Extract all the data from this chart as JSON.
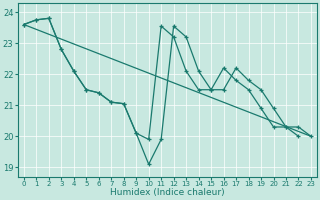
{
  "xlabel": "Humidex (Indice chaleur)",
  "bg_color": "#c8e8e0",
  "grid_color": "#ffffff",
  "line_color": "#1a7a6e",
  "xlim": [
    -0.5,
    23.5
  ],
  "ylim": [
    18.7,
    24.3
  ],
  "yticks": [
    19,
    20,
    21,
    22,
    23,
    24
  ],
  "xticks": [
    0,
    1,
    2,
    3,
    4,
    5,
    6,
    7,
    8,
    9,
    10,
    11,
    12,
    13,
    14,
    15,
    16,
    17,
    18,
    19,
    20,
    21,
    22,
    23
  ],
  "line1_x": [
    0,
    1,
    2,
    3,
    4,
    5,
    6,
    7,
    8,
    9,
    10,
    11,
    12,
    13,
    14,
    15,
    16,
    17,
    18,
    19,
    20,
    21,
    22,
    23
  ],
  "line1_y": [
    23.6,
    23.75,
    23.8,
    22.8,
    22.1,
    21.5,
    21.4,
    21.1,
    21.05,
    20.1,
    19.1,
    19.9,
    23.55,
    23.2,
    22.1,
    21.5,
    21.5,
    22.2,
    21.8,
    21.5,
    20.9,
    20.3,
    20.3,
    20.0
  ],
  "line2_x": [
    0,
    23
  ],
  "line2_y": [
    23.6,
    20.0
  ],
  "line3_x": [
    0,
    1,
    2,
    3,
    4,
    5,
    6,
    7,
    8,
    9,
    10,
    11,
    12,
    13,
    14,
    15,
    16,
    17,
    18,
    19,
    20,
    21,
    22,
    23
  ],
  "line3_y": [
    23.6,
    23.75,
    23.8,
    22.8,
    22.1,
    21.5,
    21.4,
    21.1,
    21.05,
    20.1,
    19.9,
    23.55,
    23.2,
    22.1,
    21.5,
    21.5,
    22.2,
    21.8,
    21.5,
    20.9,
    20.3,
    20.3,
    20.0,
    20.0
  ]
}
